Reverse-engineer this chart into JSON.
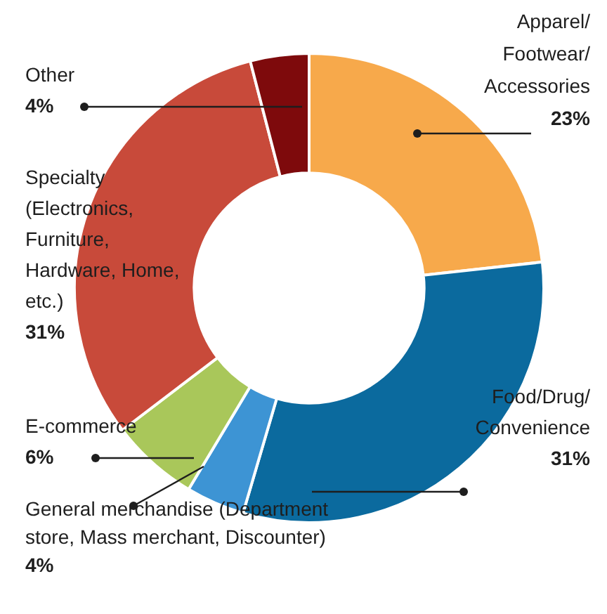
{
  "chart_data": {
    "type": "donut",
    "categories": [
      "Apparel/Footwear/Accessories",
      "Food/Drug/Convenience",
      "General merchandise (Department store, Mass merchant, Discounter)",
      "E-commerce",
      "Specialty (Electronics, Furniture, Hardware, Home, etc.)",
      "Other"
    ],
    "values": [
      23,
      31,
      4,
      6,
      31,
      4
    ],
    "colors": [
      "#f7a94b",
      "#0b6a9e",
      "#3d94d4",
      "#a9c75a",
      "#c84a3a",
      "#7e0a0c"
    ],
    "value_labels": [
      "23%",
      "31%",
      "4%",
      "6%",
      "31%",
      "4%"
    ]
  }
}
